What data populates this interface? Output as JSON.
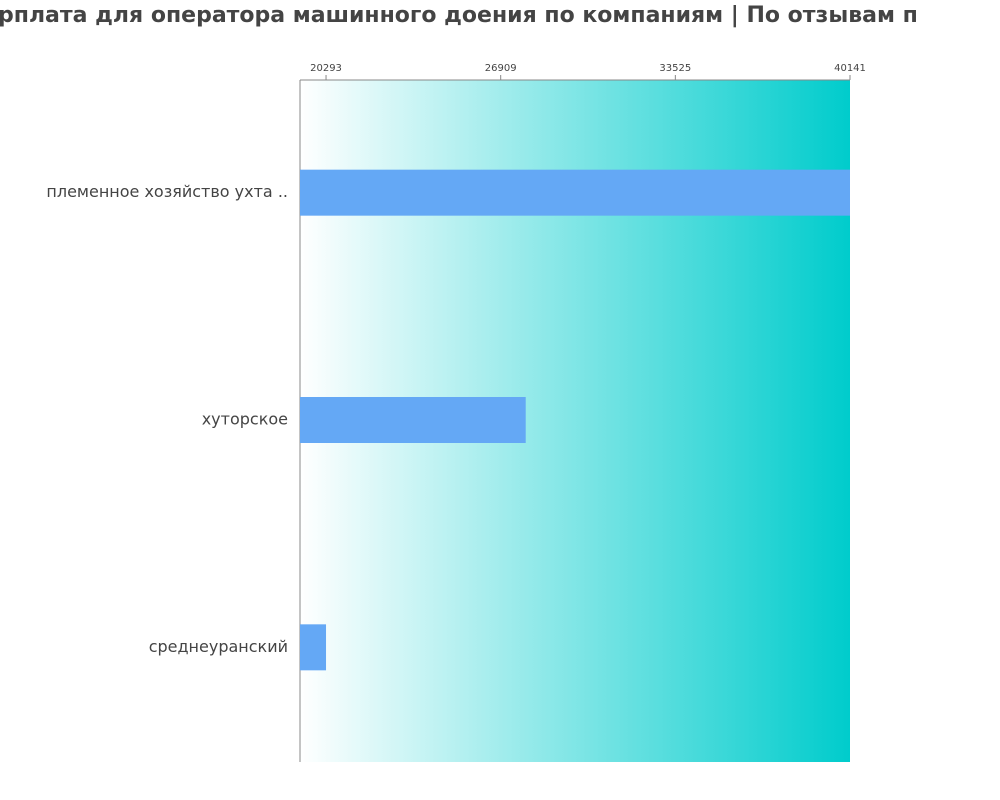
{
  "chart_data": {
    "type": "hbar",
    "title": "рплата для оператора машинного доения по компаниям  | По отзывам п",
    "categories": [
      "племенное хозяйство ухта ..",
      "хуторское",
      "среднеуранский"
    ],
    "values": [
      40141,
      27857,
      20293
    ],
    "color": "#64a8f5",
    "background_gradient": [
      "#ffffff",
      "#00cccc"
    ],
    "xlim": [
      19307,
      40141
    ],
    "xticks": [
      20293,
      26909,
      33525,
      40141
    ]
  }
}
